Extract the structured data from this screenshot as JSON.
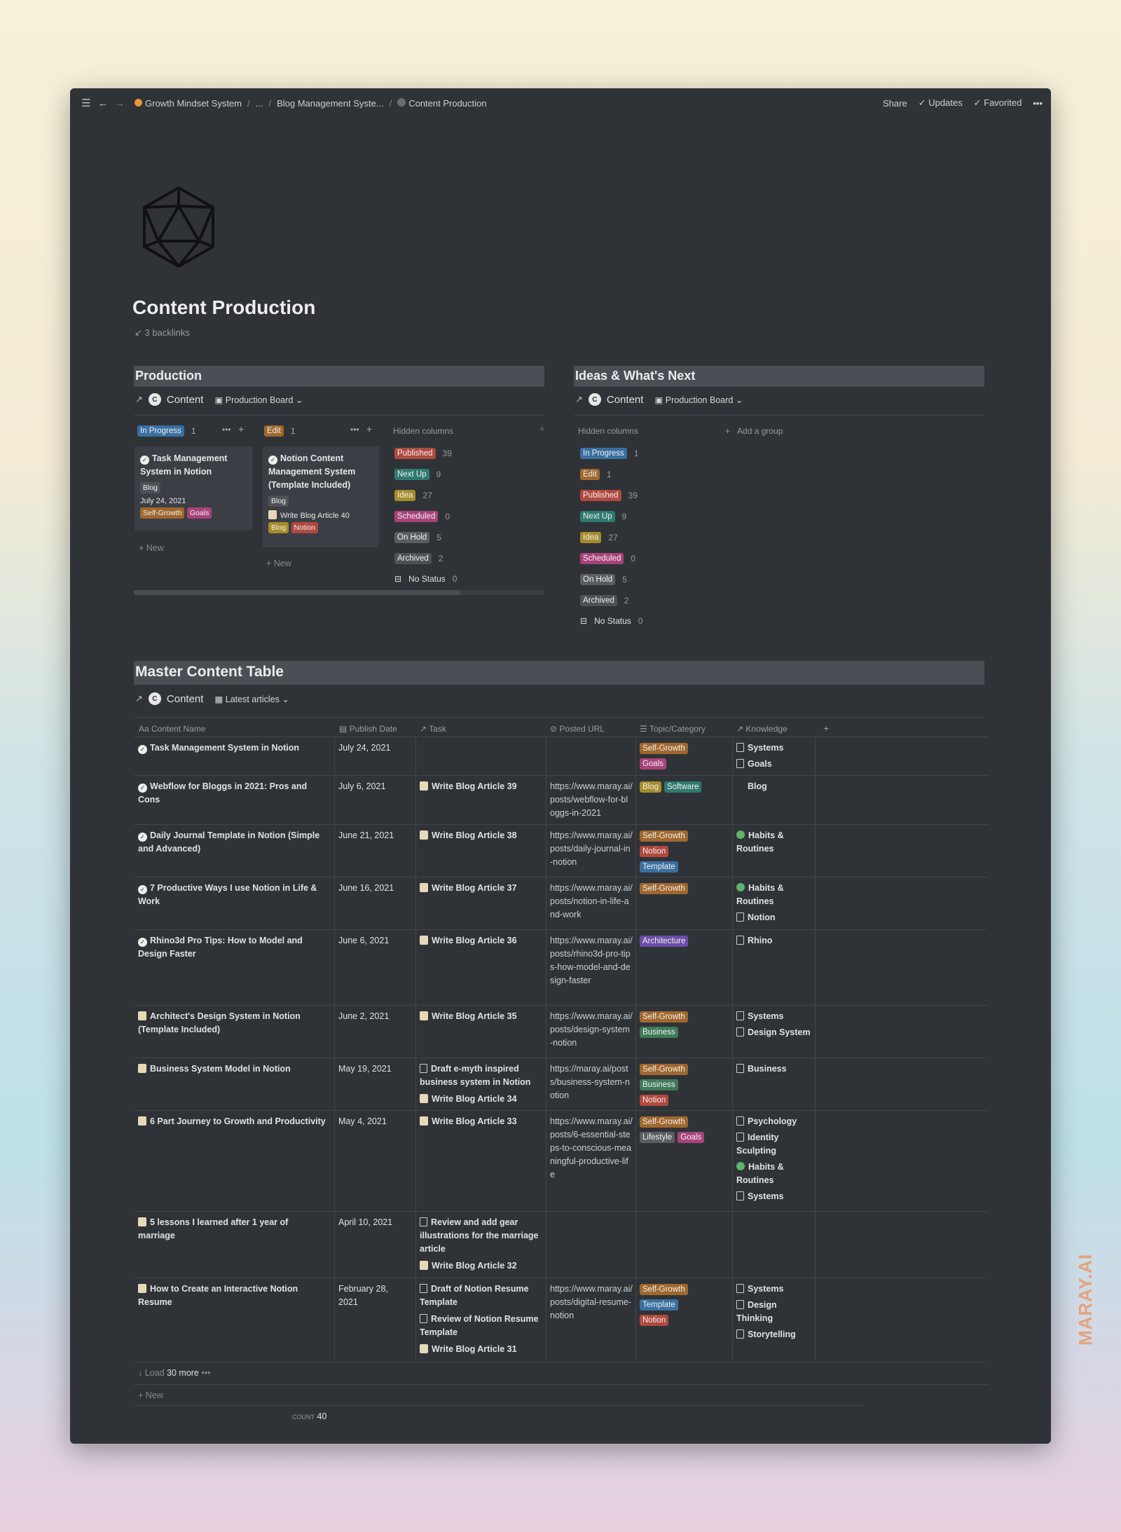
{
  "topbar": {
    "crumbs": [
      "Growth Mindset System",
      "...",
      "Blog Management Syste...",
      "Content Production"
    ],
    "share": "Share",
    "updates": "Updates",
    "favorited": "Favorited"
  },
  "page": {
    "title": "Content Production",
    "backlinks": "3 backlinks"
  },
  "production": {
    "heading": "Production",
    "db_name": "Content",
    "view_name": "Production Board",
    "groups": [
      {
        "label": "In Progress",
        "count": "1",
        "color": "#3a6fa1"
      },
      {
        "label": "Edit",
        "count": "1",
        "color": "#a0672e"
      }
    ],
    "hidden_label": "Hidden columns",
    "card1": {
      "title": "Task Management System in Notion",
      "tag": "Blog",
      "date": "July 24, 2021",
      "tags": [
        "Self-Growth",
        "Goals"
      ]
    },
    "card2": {
      "title": "Notion Content Management System (Template Included)",
      "tag": "Blog",
      "task": "Write Blog Article 40",
      "tags": [
        "Blog",
        "Notion"
      ]
    },
    "new_label": "New",
    "hidden": [
      {
        "label": "Published",
        "count": "39"
      },
      {
        "label": "Next Up",
        "count": "9"
      },
      {
        "label": "Idea",
        "count": "27"
      },
      {
        "label": "Scheduled",
        "count": "0"
      },
      {
        "label": "On Hold",
        "count": "5"
      },
      {
        "label": "Archived",
        "count": "2"
      },
      {
        "label": "No Status",
        "count": "0"
      }
    ]
  },
  "ideas": {
    "heading": "Ideas & What's Next",
    "db_name": "Content",
    "view_name": "Production Board",
    "hidden_label": "Hidden columns",
    "add_group": "Add a group",
    "hidden": [
      {
        "label": "In Progress",
        "count": "1"
      },
      {
        "label": "Edit",
        "count": "1"
      },
      {
        "label": "Published",
        "count": "39"
      },
      {
        "label": "Next Up",
        "count": "9"
      },
      {
        "label": "Idea",
        "count": "27"
      },
      {
        "label": "Scheduled",
        "count": "0"
      },
      {
        "label": "On Hold",
        "count": "5"
      },
      {
        "label": "Archived",
        "count": "2"
      },
      {
        "label": "No Status",
        "count": "0"
      }
    ]
  },
  "master": {
    "heading": "Master Content Table",
    "db_name": "Content",
    "view_name": "Latest articles",
    "columns": [
      "Content Name",
      "Publish Date",
      "Task",
      "Posted URL",
      "Topic/Category",
      "Knowledge"
    ],
    "rows": [
      {
        "name": "Task Management System in Notion",
        "date": "July 24, 2021",
        "tasks": [],
        "url": "",
        "topics": [
          "Self-Growth",
          "Goals"
        ],
        "knowledge": [
          "Systems",
          "Goals"
        ]
      },
      {
        "name": "Webflow for Bloggs in 2021: Pros and Cons",
        "date": "July 6, 2021",
        "tasks": [
          "Write Blog Article 39"
        ],
        "url": "https://www.maray.ai/posts/webflow-for-bloggs-in-2021",
        "topics": [
          "Blog",
          "Software"
        ],
        "knowledge": [
          "Blog"
        ]
      },
      {
        "name": "Daily Journal Template in Notion (Simple and Advanced)",
        "date": "June 21, 2021",
        "tasks": [
          "Write Blog Article 38"
        ],
        "url": "https://www.maray.ai/posts/daily-journal-in-notion",
        "topics": [
          "Self-Growth",
          "Notion",
          "Template"
        ],
        "knowledge": [
          "Habits & Routines"
        ]
      },
      {
        "name": "7 Productive Ways I use Notion in Life & Work",
        "date": "June 16, 2021",
        "tasks": [
          "Write Blog Article 37"
        ],
        "url": "https://www.maray.ai/posts/notion-in-life-and-work",
        "topics": [
          "Self-Growth"
        ],
        "knowledge": [
          "Habits & Routines",
          "Notion"
        ]
      },
      {
        "name": "Rhino3d Pro Tips: How to Model and Design Faster",
        "date": "June 6, 2021",
        "tasks": [
          "Write Blog Article 36"
        ],
        "url": "https://www.maray.ai/posts/rhino3d-pro-tips-how-model-and-design-faster",
        "topics": [
          "Architecture"
        ],
        "knowledge": [
          "Rhino"
        ]
      },
      {
        "name": "Architect's Design System in Notion (Template Included)",
        "date": "June 2, 2021",
        "tasks": [
          "Write Blog Article 35"
        ],
        "url": "https://www.maray.ai/posts/design-system-notion",
        "topics": [
          "Self-Growth",
          "Business"
        ],
        "knowledge": [
          "Systems",
          "Design System"
        ]
      },
      {
        "name": "Business System Model in Notion",
        "date": "May 19, 2021",
        "tasks": [
          "Draft e-myth inspired business system in Notion",
          "Write Blog Article 34"
        ],
        "url": "https://maray.ai/posts/business-system-notion",
        "topics": [
          "Self-Growth",
          "Business",
          "Notion"
        ],
        "knowledge": [
          "Business"
        ]
      },
      {
        "name": "6 Part Journey to Growth and Productivity",
        "date": "May 4, 2021",
        "tasks": [
          "Write Blog Article 33"
        ],
        "url": "https://www.maray.ai/posts/6-essential-steps-to-conscious-meaningful-productive-life",
        "topics": [
          "Self-Growth",
          "Lifestyle",
          "Goals"
        ],
        "knowledge": [
          "Psychology",
          "Identity Sculpting",
          "Habits & Routines",
          "Systems"
        ]
      },
      {
        "name": "5 lessons I learned after 1 year of marriage",
        "date": "April 10, 2021",
        "tasks": [
          "Review and add gear illustrations for the marriage article",
          "Write Blog Article 32"
        ],
        "url": "",
        "topics": [],
        "knowledge": []
      },
      {
        "name": "How to Create an Interactive Notion Resume",
        "date": "February 28, 2021",
        "tasks": [
          "Draft of Notion Resume Template",
          "Review of Notion Resume Template",
          "Write Blog Article 31"
        ],
        "url": "https://www.maray.ai/posts/digital-resume-notion",
        "topics": [
          "Self-Growth",
          "Template",
          "Notion"
        ],
        "knowledge": [
          "Systems",
          "Design Thinking",
          "Storytelling"
        ]
      }
    ],
    "load_more_prefix": "Load",
    "load_more": "30 more",
    "new_label": "New",
    "count_label": "COUNT",
    "count_value": "40"
  },
  "watermark": "MARAY.AI",
  "tag_colors": {
    "In Progress": "#3a6fa1",
    "Edit": "#a0672e",
    "Published": "#b0493f",
    "Next Up": "#2f7a70",
    "Idea": "#a68c2b",
    "Scheduled": "#a8437a",
    "On Hold": "#5a5e63",
    "Archived": "#4e5257",
    "Self-Growth": "#a0672e",
    "Goals": "#a8437a",
    "Blog": "#a68c2b",
    "Software": "#2f7a70",
    "Notion": "#b0493f",
    "Template": "#3a6fa1",
    "Architecture": "#6b4ea6",
    "Business": "#3f7a57",
    "Lifestyle": "#5a5e63"
  }
}
